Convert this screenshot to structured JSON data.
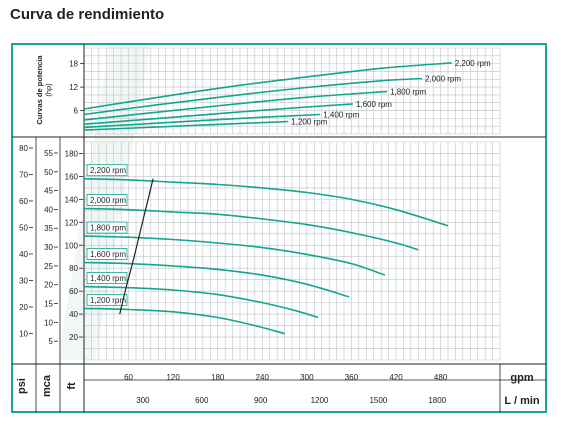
{
  "title": "Curva de rendimiento",
  "chart_data": {
    "type": "line",
    "title": "Curva de rendimiento",
    "x_units": {
      "primary": "gpm",
      "secondary": "L / min"
    },
    "x_ticks_gpm": [
      60,
      120,
      180,
      240,
      300,
      360,
      420,
      480
    ],
    "x_ticks_lmin": [
      300,
      600,
      900,
      1200,
      1500,
      1800
    ],
    "xlim_gpm": [
      0,
      560
    ],
    "power_panel": {
      "ylabel": "Curvas de potencia (hp)",
      "y_ticks": [
        6,
        12,
        18
      ],
      "ylim": [
        0,
        22
      ],
      "series": [
        {
          "name": "1,200 rpm",
          "x": [
            0,
            100,
            200,
            275
          ],
          "y": [
            1.0,
            1.8,
            2.6,
            3.2
          ]
        },
        {
          "name": "1,400 rpm",
          "x": [
            0,
            100,
            200,
            318
          ],
          "y": [
            1.7,
            2.8,
            3.9,
            5.0
          ]
        },
        {
          "name": "1,600 rpm",
          "x": [
            0,
            100,
            200,
            300,
            362
          ],
          "y": [
            2.5,
            4.0,
            5.5,
            6.9,
            7.7
          ]
        },
        {
          "name": "1,800 rpm",
          "x": [
            0,
            100,
            200,
            300,
            408
          ],
          "y": [
            3.6,
            5.6,
            7.6,
            9.4,
            10.9
          ]
        },
        {
          "name": "2,000 rpm",
          "x": [
            0,
            100,
            200,
            300,
            400,
            455
          ],
          "y": [
            5.0,
            7.5,
            9.8,
            11.9,
            13.6,
            14.2
          ]
        },
        {
          "name": "2,200 rpm",
          "x": [
            0,
            100,
            200,
            300,
            400,
            495
          ],
          "y": [
            6.4,
            9.4,
            12.2,
            14.6,
            16.8,
            18.2
          ]
        }
      ]
    },
    "head_panel": {
      "axes": [
        {
          "unit": "psi",
          "ticks": [
            10,
            20,
            30,
            40,
            50,
            60,
            70,
            80
          ]
        },
        {
          "unit": "mca",
          "ticks": [
            5,
            10,
            15,
            20,
            25,
            30,
            35,
            40,
            45,
            50,
            55
          ]
        },
        {
          "unit": "ft",
          "ticks": [
            20,
            40,
            60,
            80,
            100,
            120,
            140,
            160,
            180
          ]
        }
      ],
      "ylim_ft": [
        0,
        190
      ],
      "series": [
        {
          "name": "1,200 rpm",
          "x": [
            0,
            60,
            120,
            180,
            230,
            270
          ],
          "y": [
            45,
            44,
            42,
            37,
            30,
            23
          ]
        },
        {
          "name": "1,400 rpm",
          "x": [
            0,
            60,
            120,
            180,
            240,
            285,
            315
          ],
          "y": [
            64,
            63,
            61,
            57,
            50,
            43,
            37
          ]
        },
        {
          "name": "1,600 rpm",
          "x": [
            0,
            60,
            120,
            180,
            240,
            300,
            357
          ],
          "y": [
            85,
            84,
            82,
            79,
            74,
            66,
            55
          ]
        },
        {
          "name": "1,800 rpm",
          "x": [
            0,
            60,
            120,
            180,
            240,
            300,
            360,
            405
          ],
          "y": [
            108,
            107,
            105,
            102,
            98,
            92,
            84,
            74
          ]
        },
        {
          "name": "2,000 rpm",
          "x": [
            0,
            60,
            120,
            180,
            240,
            300,
            360,
            420,
            450
          ],
          "y": [
            132,
            131,
            129,
            127,
            123,
            118,
            111,
            102,
            96
          ]
        },
        {
          "name": "2,200 rpm",
          "x": [
            0,
            60,
            120,
            180,
            240,
            300,
            360,
            420,
            490
          ],
          "y": [
            158,
            157,
            155,
            153,
            150,
            146,
            140,
            131,
            117
          ]
        }
      ],
      "efficiency_line": {
        "x": [
          48,
          57,
          66,
          75,
          84,
          93
        ],
        "y": [
          40,
          64,
          86,
          110,
          134,
          158
        ]
      }
    },
    "grid": true,
    "colors": {
      "curve": "#12a58f",
      "frame": "#1aa68c",
      "grid": "#bfc5c4",
      "boundary": "#222222"
    }
  }
}
